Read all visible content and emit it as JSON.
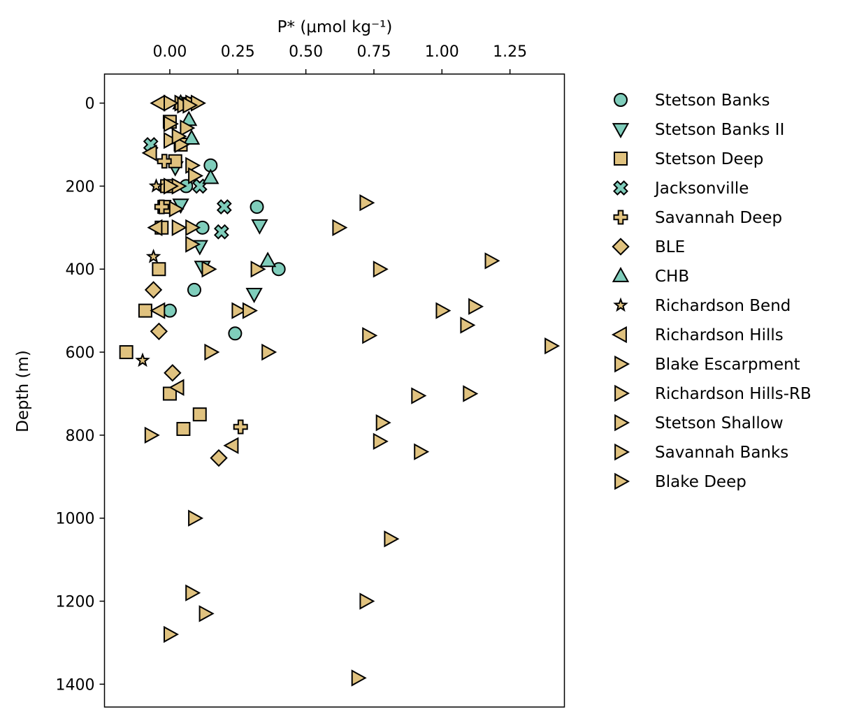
{
  "chart_data": {
    "type": "scatter",
    "xlabel": "P* (μmol kg⁻¹)",
    "ylabel": "Depth (m)",
    "xlim": [
      -0.24,
      1.45
    ],
    "ylim": [
      1455,
      -70
    ],
    "y_inverted": true,
    "x_axis_position": "top",
    "x_ticks": [
      0.0,
      0.25,
      0.5,
      0.75,
      1.0,
      1.25
    ],
    "x_tick_labels": [
      "0.00",
      "0.25",
      "0.50",
      "0.75",
      "1.00",
      "1.25"
    ],
    "y_ticks": [
      0,
      200,
      400,
      600,
      800,
      1000,
      1200,
      1400
    ],
    "y_tick_labels": [
      "0",
      "200",
      "400",
      "600",
      "800",
      "1000",
      "1200",
      "1400"
    ],
    "grid": false,
    "legend_position": "outside right",
    "colors": {
      "teal": "#7fcdbb",
      "tan": "#e0c27f",
      "edge": "#000000"
    },
    "series": [
      {
        "name": "Stetson Banks",
        "marker": "circle",
        "color": "#7fcdbb",
        "points": [
          [
            0.15,
            150
          ],
          [
            0.32,
            250
          ],
          [
            0.12,
            300
          ],
          [
            0.4,
            400
          ],
          [
            0.09,
            450
          ],
          [
            0.0,
            500
          ],
          [
            0.24,
            555
          ],
          [
            0.06,
            200
          ]
        ]
      },
      {
        "name": "Stetson Banks II",
        "marker": "triangle-down",
        "color": "#7fcdbb",
        "points": [
          [
            0.33,
            295
          ],
          [
            0.31,
            460
          ],
          [
            0.11,
            345
          ],
          [
            0.12,
            395
          ],
          [
            0.04,
            245
          ],
          [
            0.02,
            155
          ],
          [
            0.05,
            0
          ]
        ]
      },
      {
        "name": "Stetson Deep",
        "marker": "square",
        "color": "#e0c27f",
        "points": [
          [
            -0.03,
            300
          ],
          [
            -0.04,
            400
          ],
          [
            -0.09,
            500
          ],
          [
            -0.16,
            600
          ],
          [
            0.0,
            700
          ],
          [
            0.11,
            750
          ],
          [
            0.05,
            785
          ],
          [
            0.0,
            45
          ],
          [
            0.04,
            100
          ],
          [
            -0.01,
            200
          ],
          [
            0.02,
            140
          ],
          [
            -0.02,
            250
          ]
        ]
      },
      {
        "name": "Jacksonville",
        "marker": "cross-x",
        "color": "#7fcdbb",
        "points": [
          [
            -0.07,
            100
          ],
          [
            0.2,
            250
          ],
          [
            0.19,
            310
          ],
          [
            0.11,
            200
          ]
        ]
      },
      {
        "name": "Savannah Deep",
        "marker": "plus",
        "color": "#e0c27f",
        "points": [
          [
            -0.02,
            140
          ],
          [
            -0.03,
            250
          ],
          [
            0.26,
            780
          ]
        ]
      },
      {
        "name": "BLE",
        "marker": "diamond",
        "color": "#e0c27f",
        "points": [
          [
            -0.06,
            450
          ],
          [
            -0.04,
            550
          ],
          [
            0.01,
            650
          ],
          [
            0.18,
            855
          ]
        ]
      },
      {
        "name": "CHB",
        "marker": "triangle-up",
        "color": "#7fcdbb",
        "points": [
          [
            0.36,
            380
          ],
          [
            0.15,
            180
          ],
          [
            0.08,
            85
          ],
          [
            0.07,
            40
          ],
          [
            0.04,
            0
          ]
        ]
      },
      {
        "name": "Richardson Bend",
        "marker": "star",
        "color": "#e0c27f",
        "points": [
          [
            -0.1,
            620
          ],
          [
            -0.06,
            370
          ],
          [
            -0.05,
            200
          ]
        ]
      },
      {
        "name": "Richardson Hills",
        "marker": "triangle-left",
        "color": "#e0c27f",
        "points": [
          [
            -0.04,
            500
          ],
          [
            0.03,
            685
          ],
          [
            0.23,
            825
          ],
          [
            -0.05,
            300
          ],
          [
            -0.07,
            120
          ],
          [
            -0.04,
            0
          ]
        ]
      },
      {
        "name": "Blake Escarpment",
        "marker": "triangle-right",
        "color": "#e0c27f",
        "points": [
          [
            0.72,
            240
          ],
          [
            0.62,
            300
          ],
          [
            1.18,
            380
          ],
          [
            0.77,
            400
          ],
          [
            1.12,
            490
          ],
          [
            1.0,
            500
          ],
          [
            1.09,
            535
          ],
          [
            0.73,
            560
          ],
          [
            1.4,
            585
          ],
          [
            0.36,
            600
          ],
          [
            0.91,
            705
          ],
          [
            1.1,
            700
          ],
          [
            0.78,
            770
          ],
          [
            0.77,
            815
          ],
          [
            0.92,
            840
          ],
          [
            0.81,
            1050
          ],
          [
            0.72,
            1200
          ],
          [
            0.69,
            1385
          ]
        ]
      },
      {
        "name": "Richardson Hills-RB",
        "marker": "triangle-right",
        "color": "#e0c27f",
        "points": [
          [
            0.08,
            300
          ],
          [
            0.14,
            400
          ],
          [
            0.25,
            500
          ],
          [
            0.29,
            500
          ],
          [
            0.32,
            400
          ],
          [
            0.15,
            600
          ],
          [
            0.08,
            340
          ]
        ]
      },
      {
        "name": "Stetson Shallow",
        "marker": "triangle-right",
        "color": "#e0c27f",
        "points": [
          [
            -0.07,
            800
          ],
          [
            0.09,
            1000
          ],
          [
            0.08,
            1180
          ],
          [
            0.13,
            1230
          ],
          [
            0.0,
            1280
          ],
          [
            0.03,
            300
          ]
        ]
      },
      {
        "name": "Savannah Banks",
        "marker": "triangle-right",
        "color": "#e0c27f",
        "points": [
          [
            0.08,
            150
          ],
          [
            0.09,
            175
          ],
          [
            0.06,
            60
          ],
          [
            0.04,
            100
          ],
          [
            0.03,
            200
          ],
          [
            0.0,
            200
          ],
          [
            0.04,
            0
          ],
          [
            0.0,
            0
          ],
          [
            0.08,
            0
          ],
          [
            0.02,
            255
          ],
          [
            0.05,
            5
          ]
        ]
      },
      {
        "name": "Blake Deep",
        "marker": "triangle-right",
        "color": "#e0c27f",
        "points": [
          [
            0.1,
            0
          ],
          [
            0.0,
            50
          ],
          [
            0.07,
            5
          ],
          [
            0.0,
            90
          ],
          [
            0.03,
            80
          ]
        ]
      }
    ]
  }
}
